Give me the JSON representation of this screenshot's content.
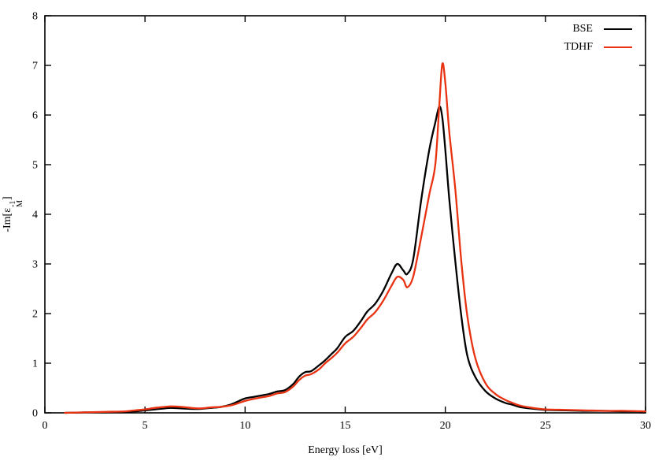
{
  "chart_data": {
    "type": "line",
    "title": "",
    "xlabel": "Energy loss [eV]",
    "ylabel": "-Im[epsilon_M^-1]",
    "xlim": [
      0,
      30
    ],
    "ylim": [
      0,
      8
    ],
    "xticks": [
      0,
      5,
      10,
      15,
      20,
      25,
      30
    ],
    "yticks": [
      0,
      1,
      2,
      3,
      4,
      5,
      6,
      7,
      8
    ],
    "grid": false,
    "legend_position": "top-right-inside",
    "x": [
      1,
      2,
      3,
      4,
      4.5,
      5,
      5.5,
      6,
      6.3,
      6.8,
      7.3,
      7.8,
      8.3,
      8.8,
      9.3,
      9.7,
      10,
      10.4,
      10.8,
      11.2,
      11.6,
      12,
      12.4,
      12.7,
      13,
      13.3,
      13.7,
      14,
      14.3,
      14.6,
      15,
      15.4,
      15.8,
      16.1,
      16.5,
      16.9,
      17.3,
      17.6,
      17.9,
      18.1,
      18.4,
      18.8,
      19.2,
      19.5,
      19.7,
      19.85,
      20,
      20.2,
      20.5,
      20.8,
      21.1,
      21.5,
      22,
      22.5,
      23,
      23.3,
      23.7,
      24.2,
      25,
      26,
      27,
      28,
      29,
      30
    ],
    "series": [
      {
        "name": "BSE",
        "color": "#000000",
        "values": [
          0.0,
          0.01,
          0.01,
          0.02,
          0.03,
          0.05,
          0.07,
          0.09,
          0.1,
          0.09,
          0.08,
          0.08,
          0.1,
          0.12,
          0.17,
          0.24,
          0.29,
          0.32,
          0.35,
          0.38,
          0.43,
          0.46,
          0.58,
          0.73,
          0.82,
          0.84,
          0.96,
          1.06,
          1.18,
          1.3,
          1.53,
          1.65,
          1.86,
          2.04,
          2.2,
          2.46,
          2.8,
          3.0,
          2.87,
          2.8,
          3.1,
          4.3,
          5.3,
          5.85,
          6.17,
          5.95,
          5.3,
          4.3,
          3.05,
          1.95,
          1.15,
          0.72,
          0.44,
          0.29,
          0.2,
          0.17,
          0.12,
          0.09,
          0.06,
          0.05,
          0.04,
          0.04,
          0.03,
          0.03
        ]
      },
      {
        "name": "TDHF",
        "color": "#e93211",
        "values": [
          0.0,
          0.01,
          0.02,
          0.03,
          0.05,
          0.07,
          0.1,
          0.12,
          0.13,
          0.12,
          0.1,
          0.09,
          0.11,
          0.12,
          0.15,
          0.2,
          0.24,
          0.28,
          0.31,
          0.34,
          0.39,
          0.42,
          0.53,
          0.66,
          0.75,
          0.78,
          0.88,
          1.0,
          1.1,
          1.21,
          1.4,
          1.53,
          1.72,
          1.88,
          2.03,
          2.26,
          2.55,
          2.74,
          2.68,
          2.53,
          2.75,
          3.55,
          4.4,
          5.0,
          6.2,
          7.03,
          6.65,
          5.65,
          4.5,
          3.05,
          1.95,
          1.1,
          0.6,
          0.38,
          0.26,
          0.21,
          0.15,
          0.11,
          0.07,
          0.06,
          0.05,
          0.04,
          0.04,
          0.03
        ]
      }
    ]
  },
  "chart": {
    "x_axis": {
      "label": "Energy loss [eV]"
    },
    "y_axis": {
      "label_prefix": "-Im[ε",
      "label_sup": "-1",
      "label_sub": "M",
      "label_suffix": "]"
    }
  },
  "legend": {
    "entries": [
      {
        "label": "BSE",
        "color": "#000000"
      },
      {
        "label": "TDHF",
        "color": "#e93211"
      }
    ]
  },
  "colors": {
    "bse": "#000000",
    "tdhf": "#e93211",
    "axis": "#000000",
    "background": "#ffffff"
  }
}
